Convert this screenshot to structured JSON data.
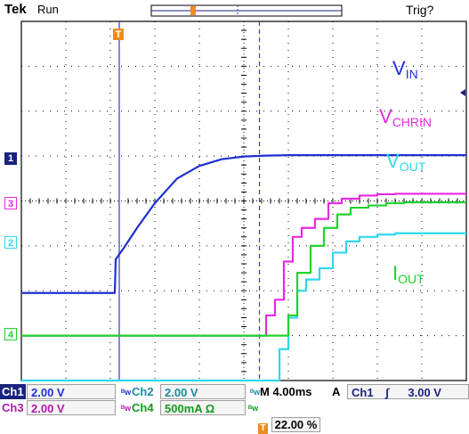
{
  "header": {
    "brand": "Tek",
    "state": "Run",
    "trigger_status": "Trig?"
  },
  "labels": {
    "vin": {
      "main": "V",
      "sub": "IN"
    },
    "vchrin": {
      "main": "V",
      "sub": "CHRIN"
    },
    "vout": {
      "main": "V",
      "sub": "OUT"
    },
    "iout": {
      "main": "I",
      "sub": "OUT"
    }
  },
  "markers": {
    "ch1": "1",
    "ch2": "2",
    "ch3": "3",
    "ch4": "4",
    "trigger": "T"
  },
  "readout": {
    "ch1_label": "Ch1",
    "ch1_scale": "2.00 V",
    "ch2_label": "Ch2",
    "ch2_scale": "2.00 V",
    "ch3_label": "Ch3",
    "ch3_scale": "2.00 V",
    "ch4_label": "Ch4",
    "ch4_scale": "500mA Ω",
    "timebase": "M 4.00ms",
    "trigger_mode": "A",
    "trigger_source": "Ch1",
    "trigger_slope": "∫",
    "trigger_level": "3.00 V",
    "trigger_position": "22.00 %",
    "bw_symbol": "ᴮw"
  },
  "colors": {
    "ch1": "#1f2fd1",
    "ch2": "#2fd7ee",
    "ch3": "#e629e0",
    "ch4": "#22d22e",
    "trigger": "#f08c1a",
    "grid": "#000000"
  },
  "chart_data": {
    "type": "line",
    "x_unit": "div",
    "x_range": [
      0,
      10
    ],
    "y_unit": "div",
    "y_range": [
      -4,
      4
    ],
    "grid": true,
    "cursors": [
      {
        "name": "trigger",
        "x": 2.2,
        "style": "solid"
      },
      {
        "name": "cursor2",
        "x": 5.35,
        "style": "dashed"
      }
    ],
    "series": [
      {
        "name": "V",
        "channel": 1,
        "x": [
          0,
          2.1,
          2.12,
          2.3,
          2.6,
          3.0,
          3.5,
          4.0,
          4.5,
          5.0,
          5.5,
          6.0,
          10
        ],
        "y": [
          -2.05,
          -2.05,
          -1.3,
          -1.05,
          -0.6,
          -0.05,
          0.5,
          0.78,
          0.93,
          0.99,
          1.01,
          1.02,
          1.02
        ]
      },
      {
        "name": "V",
        "channel": 3,
        "x": [
          0,
          5.35,
          5.5,
          5.7,
          5.9,
          6.1,
          6.3,
          6.6,
          6.9,
          7.2,
          7.6,
          8.0,
          8.4,
          10
        ],
        "y": [
          -3.0,
          -3.0,
          -2.55,
          -2.2,
          -1.35,
          -0.8,
          -0.6,
          -0.4,
          -0.05,
          0.05,
          0.12,
          0.15,
          0.16,
          0.16
        ]
      },
      {
        "name": "V",
        "channel": 2,
        "x": [
          0,
          5.6,
          5.8,
          6.0,
          6.2,
          6.4,
          6.7,
          7.0,
          7.3,
          7.6,
          8.0,
          8.4,
          10
        ],
        "y": [
          -4.0,
          -4.0,
          -3.3,
          -2.6,
          -2.0,
          -1.75,
          -1.5,
          -1.15,
          -0.9,
          -0.8,
          -0.75,
          -0.72,
          -0.72
        ]
      },
      {
        "name": "I",
        "channel": 4,
        "x": [
          0,
          5.8,
          6.0,
          6.2,
          6.5,
          6.8,
          7.1,
          7.4,
          7.8,
          8.2,
          8.6,
          10
        ],
        "y": [
          -3.0,
          -3.0,
          -2.55,
          -1.6,
          -1.0,
          -0.6,
          -0.3,
          -0.15,
          -0.1,
          -0.05,
          -0.03,
          -0.03
        ]
      }
    ],
    "channel_offsets_div": {
      "ch1": -2.05,
      "ch2": -1.0,
      "ch3": 0.0,
      "ch4": -3.0
    },
    "display_offset_div": {
      "ch1": 0,
      "ch2": 3.0,
      "ch3": 3.0,
      "ch4": 0
    }
  }
}
